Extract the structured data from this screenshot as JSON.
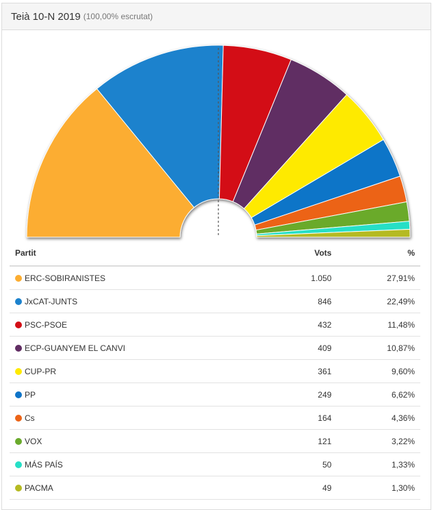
{
  "header": {
    "title": "Teià 10-N 2019",
    "subtitle": "(100,00% escrutat)"
  },
  "table": {
    "col_party": "Partit",
    "col_votes": "Vots",
    "col_pct": "%"
  },
  "chart_data": {
    "type": "pie",
    "shape": "semicircle",
    "majority_line": true,
    "categories": [
      "ERC-SOBIRANISTES",
      "JxCAT-JUNTS",
      "PSC-PSOE",
      "ECP-GUANYEM EL CANVI",
      "CUP-PR",
      "PP",
      "Cs",
      "VOX",
      "MÁS PAÍS",
      "PACMA"
    ],
    "values": [
      1050,
      846,
      432,
      409,
      361,
      249,
      164,
      121,
      50,
      49
    ],
    "colors": [
      "#FCAD31",
      "#1C82CD",
      "#D30E16",
      "#612D63",
      "#FEEA00",
      "#0E74C8",
      "#EC6417",
      "#6AAA2C",
      "#26DFC6",
      "#B5BA22"
    ],
    "rows": [
      {
        "party": "ERC-SOBIRANISTES",
        "votes": "1.050",
        "pct": "27,91%",
        "color": "#FCAD31"
      },
      {
        "party": "JxCAT-JUNTS",
        "votes": "846",
        "pct": "22,49%",
        "color": "#1C82CD"
      },
      {
        "party": "PSC-PSOE",
        "votes": "432",
        "pct": "11,48%",
        "color": "#D30E16"
      },
      {
        "party": "ECP-GUANYEM EL CANVI",
        "votes": "409",
        "pct": "10,87%",
        "color": "#612D63"
      },
      {
        "party": "CUP-PR",
        "votes": "361",
        "pct": "9,60%",
        "color": "#FEEA00"
      },
      {
        "party": "PP",
        "votes": "249",
        "pct": "6,62%",
        "color": "#0E74C8"
      },
      {
        "party": "Cs",
        "votes": "164",
        "pct": "4,36%",
        "color": "#EC6417"
      },
      {
        "party": "VOX",
        "votes": "121",
        "pct": "3,22%",
        "color": "#6AAA2C"
      },
      {
        "party": "MÁS PAÍS",
        "votes": "50",
        "pct": "1,33%",
        "color": "#26DFC6"
      },
      {
        "party": "PACMA",
        "votes": "49",
        "pct": "1,30%",
        "color": "#B5BA22"
      }
    ]
  }
}
